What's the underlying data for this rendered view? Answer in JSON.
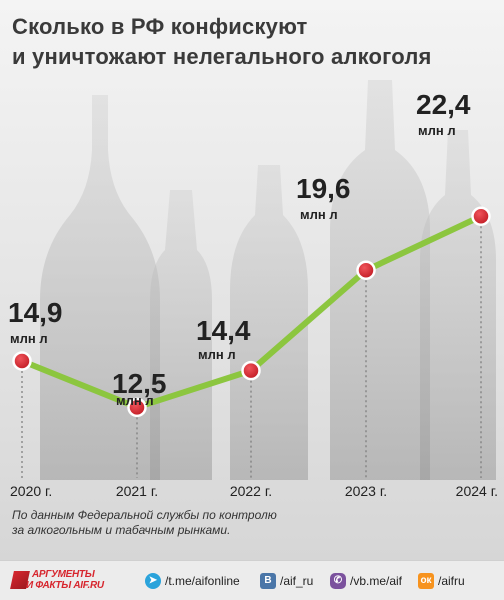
{
  "title": {
    "line1": "Сколько в РФ конфискуют",
    "line2": "и уничтожают нелегального алкоголя"
  },
  "chart_data": {
    "type": "line",
    "categories": [
      "2020 г.",
      "2021 г.",
      "2022 г.",
      "2023 г.",
      "2024 г."
    ],
    "values": [
      14.9,
      12.5,
      14.4,
      19.6,
      22.4
    ],
    "value_labels": [
      "14,9",
      "12,5",
      "14,4",
      "19,6",
      "22,4"
    ],
    "unit_label": "млн л",
    "line_color": "#8cc63f",
    "marker_color": "#d7262e",
    "grid": "vertical dotted lines at each year",
    "legend": "none"
  },
  "source_note": {
    "line1": "По данным Федеральной службы по контролю",
    "line2": "за алкогольным и табачным рынками."
  },
  "footer": {
    "logo_line1": "АРГУМЕНТЫ",
    "logo_line2": "И ФАКТЫ",
    "logo_domain": "AIF.RU",
    "social": [
      {
        "icon": "telegram-icon",
        "text": "/t.me/aifonline"
      },
      {
        "icon": "vk-icon",
        "text": "/aif_ru"
      },
      {
        "icon": "viber-icon",
        "text": "/vb.me/aif"
      },
      {
        "icon": "odnoklassniki-icon",
        "text": "/aifru"
      }
    ]
  }
}
